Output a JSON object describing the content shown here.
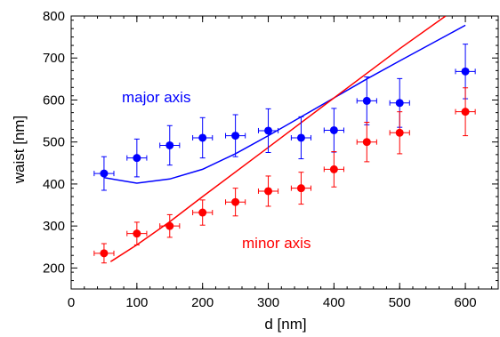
{
  "chart_data": {
    "type": "scatter",
    "xlabel": "d [nm]",
    "ylabel": "waist [nm]",
    "xlim": [
      0,
      650
    ],
    "ylim": [
      150,
      800
    ],
    "x_ticks": [
      0,
      100,
      200,
      300,
      400,
      500,
      600
    ],
    "y_ticks": [
      200,
      300,
      400,
      500,
      600,
      700,
      800
    ],
    "x_minor_step": 20,
    "y_minor_step": 20,
    "grid": false,
    "legend": "none",
    "annotations": [
      {
        "text": "major axis",
        "color": "#0000ff",
        "series": "major"
      },
      {
        "text": "minor axis",
        "color": "#ff0000",
        "series": "minor"
      }
    ],
    "series": [
      {
        "color": "#0000ff",
        "x": [
          50,
          100,
          150,
          200,
          250,
          300,
          350,
          400,
          450,
          500,
          600
        ],
        "y": [
          425,
          462,
          492,
          510,
          515,
          527,
          510,
          528,
          598,
          593,
          668
        ],
        "xerr": [
          15,
          15,
          15,
          15,
          15,
          15,
          15,
          15,
          15,
          15,
          15
        ],
        "yerr": [
          40,
          45,
          47,
          48,
          50,
          52,
          50,
          52,
          57,
          58,
          65
        ]
      },
      {
        "color": "#ff0000",
        "x": [
          50,
          100,
          150,
          200,
          250,
          300,
          350,
          400,
          450,
          500,
          600
        ],
        "y": [
          235,
          282,
          300,
          332,
          357,
          383,
          390,
          435,
          500,
          522,
          572
        ],
        "xerr": [
          15,
          15,
          15,
          15,
          15,
          15,
          15,
          15,
          15,
          15,
          15
        ],
        "yerr": [
          23,
          27,
          27,
          30,
          33,
          36,
          38,
          42,
          47,
          50,
          57
        ]
      }
    ],
    "model_curves": [
      {
        "color": "#0000ff",
        "x": [
          50,
          100,
          150,
          200,
          250,
          300,
          350,
          400,
          450,
          500,
          600
        ],
        "y": [
          415,
          402,
          412,
          435,
          472,
          515,
          560,
          605,
          650,
          693,
          778
        ]
      },
      {
        "color": "#ff0000",
        "x": [
          60,
          100,
          150,
          200,
          300,
          400,
          500,
          570
        ],
        "y": [
          215,
          255,
          310,
          370,
          487,
          605,
          722,
          800
        ]
      }
    ]
  }
}
